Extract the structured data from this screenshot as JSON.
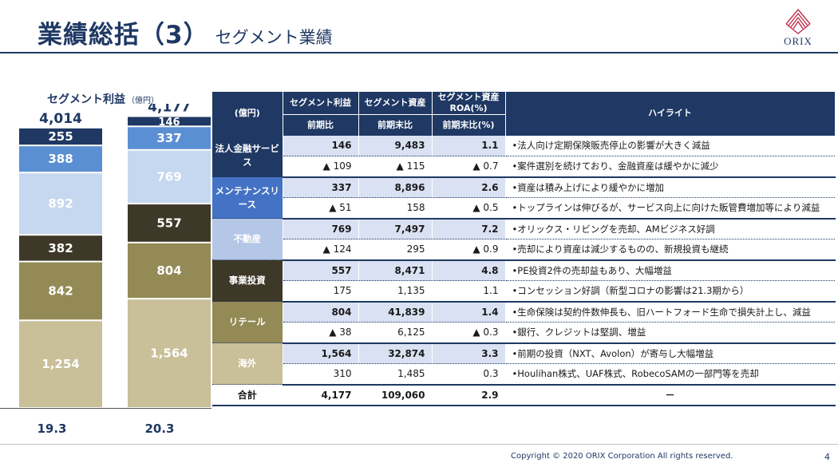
{
  "header": {
    "title_main": "業績総括（3）",
    "title_sub": "セグメント業績",
    "logo_text": "ORIX"
  },
  "chart_data": {
    "type": "bar",
    "stacked": true,
    "title": "セグメント利益",
    "unit": "（億円）",
    "categories": [
      "19.3",
      "20.3"
    ],
    "totals": [
      4014,
      4177
    ],
    "totals_label": [
      "4,014",
      "4,177"
    ],
    "series": [
      {
        "name": "海外",
        "values": [
          1254,
          1564
        ],
        "labels": [
          "1,254",
          "1,564"
        ],
        "color": "#c9bf99",
        "text_color": "#ffffff"
      },
      {
        "name": "リテール",
        "values": [
          842,
          804
        ],
        "labels": [
          "842",
          "804"
        ],
        "color": "#938a55",
        "text_color": "#ffffff"
      },
      {
        "name": "事業投資",
        "values": [
          382,
          557
        ],
        "labels": [
          "382",
          "557"
        ],
        "color": "#3d3828",
        "text_color": "#ffffff"
      },
      {
        "name": "不動産",
        "values": [
          892,
          769
        ],
        "labels": [
          "892",
          "769"
        ],
        "color": "#c6d8ef",
        "text_color": "#ffffff"
      },
      {
        "name": "メンテナンスリース",
        "values": [
          388,
          337
        ],
        "labels": [
          "388",
          "337"
        ],
        "color": "#5b8fd3",
        "text_color": "#ffffff"
      },
      {
        "name": "法人金融サービス",
        "values": [
          255,
          146
        ],
        "labels": [
          "255",
          "146"
        ],
        "color": "#1f3864",
        "text_color": "#ffffff"
      }
    ]
  },
  "table": {
    "corner": "(億円)",
    "col_headers": [
      {
        "top": "セグメント利益",
        "sub": "前期比"
      },
      {
        "top": "セグメント資産",
        "sub": "前期末比"
      },
      {
        "top": "セグメント資産ROA(%)",
        "sub": "前期末比(%)"
      }
    ],
    "highlight_header": "ハイライト",
    "segments": [
      {
        "name": "法人金融サービス",
        "color": "#1f3864",
        "profit": "146",
        "assets": "9,483",
        "roa": "1.1",
        "profit_chg": "▲ 109",
        "assets_chg": "▲ 115",
        "roa_chg": "▲ 0.7",
        "hl1": "•法人向け定期保険販売停止の影響が大きく減益",
        "hl2": "•案件選別を続けており、金融資産は緩やかに減少"
      },
      {
        "name": "メンテナンスリース",
        "color": "#4472c4",
        "profit": "337",
        "assets": "8,896",
        "roa": "2.6",
        "profit_chg": "▲ 51",
        "assets_chg": "158",
        "roa_chg": "▲ 0.5",
        "hl1": "•資産は積み上げにより緩やかに増加",
        "hl2": "•トップラインは伸びるが、サービス向上に向けた販管費増加等により減益"
      },
      {
        "name": "不動産",
        "color": "#b4c7e7",
        "profit": "769",
        "assets": "7,497",
        "roa": "7.2",
        "profit_chg": "▲ 124",
        "assets_chg": "295",
        "roa_chg": "▲ 0.9",
        "hl1": "•オリックス・リビングを売却、AMビジネス好調",
        "hl2": "•売却により資産は減少するものの、新規投資も継続"
      },
      {
        "name": "事業投資",
        "color": "#3d3828",
        "profit": "557",
        "assets": "8,471",
        "roa": "4.8",
        "profit_chg": "175",
        "assets_chg": "1,135",
        "roa_chg": "1.1",
        "hl1": "•PE投資2件の売却益もあり、大幅増益",
        "hl2": "•コンセッション好調（新型コロナの影響は21.3期から）"
      },
      {
        "name": "リテール",
        "color": "#938a55",
        "profit": "804",
        "assets": "41,839",
        "roa": "1.4",
        "profit_chg": "▲ 38",
        "assets_chg": "6,125",
        "roa_chg": "▲ 0.3",
        "hl1": "•生命保険は契約件数伸長も、旧ハートフォード生命で損失計上し、減益",
        "hl2": "•銀行、クレジットは堅調、増益"
      },
      {
        "name": "海外",
        "color": "#c9bf99",
        "profit": "1,564",
        "assets": "32,874",
        "roa": "3.3",
        "profit_chg": "310",
        "assets_chg": "1,485",
        "roa_chg": "0.3",
        "hl1": "•前期の投資（NXT、Avolon）が寄与し大幅増益",
        "hl2": "•Houlihan株式、UAF株式、RobecoSAMの一部門等を売却"
      }
    ],
    "total": {
      "label": "合計",
      "profit": "4,177",
      "assets": "109,060",
      "roa": "2.9",
      "highlight": "－"
    }
  },
  "footer": {
    "copyright": "Copyright © 2020 ORIX Corporation  All rights reserved.",
    "page": "4"
  }
}
